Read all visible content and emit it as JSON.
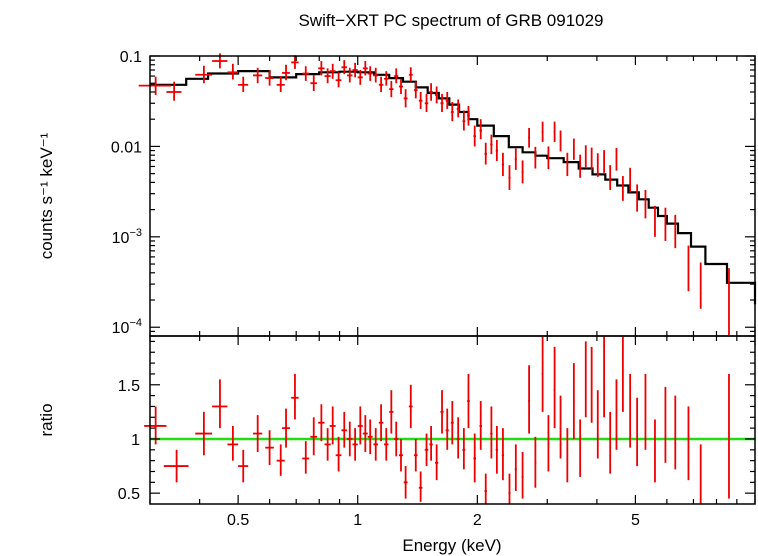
{
  "chart_data": [
    {
      "panel": "spectrum",
      "type": "scatter",
      "title": "Swift−XRT PC spectrum of GRB 091029",
      "xlabel": "Energy (keV)",
      "ylabel": "counts s⁻¹ keV⁻¹",
      "xscale": "log",
      "yscale": "log",
      "xlim": [
        0.3,
        10
      ],
      "ylim": [
        8e-05,
        0.1
      ],
      "x_ticks": [
        {
          "v": 0.5,
          "label": "0.5"
        },
        {
          "v": 1,
          "label": "1"
        },
        {
          "v": 2,
          "label": "2"
        },
        {
          "v": 5,
          "label": "5"
        }
      ],
      "y_ticks": [
        {
          "v": 0.1,
          "base": "0.1",
          "exp": ""
        },
        {
          "v": 0.01,
          "base": "0.01",
          "exp": ""
        },
        {
          "v": 0.001,
          "base": "10",
          "exp": "−3"
        },
        {
          "v": 0.0001,
          "base": "10",
          "exp": "−4"
        }
      ],
      "data_points": [
        [
          0.31,
          0.029,
          0.047,
          0.037,
          0.059
        ],
        [
          0.345,
          0.015,
          0.04,
          0.032,
          0.052
        ],
        [
          0.41,
          0.02,
          0.062,
          0.05,
          0.078
        ],
        [
          0.45,
          0.02,
          0.088,
          0.073,
          0.107
        ],
        [
          0.485,
          0.015,
          0.066,
          0.055,
          0.082
        ],
        [
          0.515,
          0.015,
          0.048,
          0.04,
          0.059
        ],
        [
          0.56,
          0.015,
          0.061,
          0.05,
          0.074
        ],
        [
          0.6,
          0.015,
          0.057,
          0.047,
          0.07
        ],
        [
          0.64,
          0.015,
          0.048,
          0.04,
          0.06
        ],
        [
          0.66,
          0.015,
          0.065,
          0.054,
          0.08
        ],
        [
          0.695,
          0.015,
          0.085,
          0.072,
          0.102
        ],
        [
          0.74,
          0.015,
          0.064,
          0.053,
          0.077
        ],
        [
          0.775,
          0.015,
          0.05,
          0.041,
          0.061
        ],
        [
          0.81,
          0.015,
          0.073,
          0.061,
          0.088
        ],
        [
          0.84,
          0.015,
          0.06,
          0.05,
          0.073
        ],
        [
          0.865,
          0.015,
          0.068,
          0.056,
          0.082
        ],
        [
          0.895,
          0.015,
          0.054,
          0.045,
          0.066
        ],
        [
          0.925,
          0.015,
          0.075,
          0.063,
          0.09
        ],
        [
          0.955,
          0.015,
          0.061,
          0.051,
          0.074
        ],
        [
          0.985,
          0.015,
          0.07,
          0.058,
          0.084
        ],
        [
          1.015,
          0.015,
          0.058,
          0.048,
          0.07
        ],
        [
          1.045,
          0.015,
          0.073,
          0.061,
          0.088
        ],
        [
          1.075,
          0.015,
          0.064,
          0.053,
          0.077
        ],
        [
          1.11,
          0.015,
          0.061,
          0.051,
          0.074
        ],
        [
          1.145,
          0.015,
          0.048,
          0.04,
          0.059
        ],
        [
          1.18,
          0.015,
          0.056,
          0.047,
          0.068
        ],
        [
          1.215,
          0.015,
          0.043,
          0.035,
          0.053
        ],
        [
          1.25,
          0.015,
          0.06,
          0.05,
          0.073
        ],
        [
          1.285,
          0.015,
          0.046,
          0.038,
          0.056
        ],
        [
          1.32,
          0.015,
          0.034,
          0.027,
          0.043
        ],
        [
          1.36,
          0.015,
          0.062,
          0.052,
          0.075
        ],
        [
          1.4,
          0.015,
          0.042,
          0.034,
          0.052
        ],
        [
          1.44,
          0.015,
          0.032,
          0.026,
          0.04
        ],
        [
          1.49,
          0.015,
          0.03,
          0.024,
          0.038
        ],
        [
          1.53,
          0.015,
          0.04,
          0.032,
          0.05
        ],
        [
          1.58,
          0.015,
          0.037,
          0.03,
          0.046
        ],
        [
          1.63,
          0.015,
          0.03,
          0.024,
          0.038
        ],
        [
          1.68,
          0.015,
          0.032,
          0.026,
          0.04
        ],
        [
          1.73,
          0.015,
          0.024,
          0.019,
          0.031
        ],
        [
          1.79,
          0.015,
          0.026,
          0.021,
          0.033
        ],
        [
          1.85,
          0.015,
          0.019,
          0.015,
          0.025
        ],
        [
          1.9,
          0.015,
          0.022,
          0.017,
          0.028
        ],
        [
          1.97,
          0.015,
          0.013,
          0.01,
          0.017
        ],
        [
          2.04,
          0.015,
          0.015,
          0.012,
          0.02
        ],
        [
          2.1,
          0.015,
          0.0083,
          0.0063,
          0.011
        ],
        [
          2.17,
          0.015,
          0.0105,
          0.0082,
          0.0135
        ],
        [
          2.24,
          0.015,
          0.009,
          0.0069,
          0.0118
        ],
        [
          2.32,
          0.015,
          0.0063,
          0.0047,
          0.0085
        ],
        [
          2.41,
          0.015,
          0.0045,
          0.0033,
          0.0062
        ],
        [
          2.5,
          0.015,
          0.0072,
          0.0055,
          0.0095
        ],
        [
          2.6,
          0.015,
          0.0052,
          0.0039,
          0.007
        ],
        [
          2.7,
          0.015,
          0.0125,
          0.0097,
          0.016
        ],
        [
          2.8,
          0.015,
          0.0075,
          0.0057,
          0.0099
        ],
        [
          2.92,
          0.015,
          0.0145,
          0.0112,
          0.0188
        ],
        [
          3.02,
          0.015,
          0.0075,
          0.0056,
          0.01
        ],
        [
          3.13,
          0.015,
          0.0145,
          0.0112,
          0.0188
        ],
        [
          3.24,
          0.015,
          0.0115,
          0.0088,
          0.015
        ],
        [
          3.37,
          0.015,
          0.0063,
          0.0047,
          0.0085
        ],
        [
          3.5,
          0.015,
          0.0093,
          0.0071,
          0.0122
        ],
        [
          3.63,
          0.015,
          0.006,
          0.0045,
          0.0081
        ],
        [
          3.75,
          0.015,
          0.0078,
          0.0059,
          0.0103
        ],
        [
          3.88,
          0.015,
          0.0073,
          0.0055,
          0.0097
        ],
        [
          4.02,
          0.015,
          0.0062,
          0.0046,
          0.0084
        ],
        [
          4.17,
          0.015,
          0.0068,
          0.0051,
          0.0091
        ],
        [
          4.32,
          0.015,
          0.0045,
          0.0033,
          0.0062
        ],
        [
          4.48,
          0.015,
          0.0072,
          0.0054,
          0.0096
        ],
        [
          4.65,
          0.015,
          0.0034,
          0.0025,
          0.0047
        ],
        [
          4.85,
          0.015,
          0.0042,
          0.0031,
          0.0058
        ],
        [
          5.05,
          0.015,
          0.0027,
          0.0019,
          0.0038
        ],
        [
          5.3,
          0.015,
          0.0023,
          0.0016,
          0.0033
        ],
        [
          5.6,
          0.015,
          0.0015,
          0.001,
          0.0022
        ],
        [
          5.95,
          0.015,
          0.0014,
          0.0009,
          0.0021
        ],
        [
          6.3,
          0.015,
          0.00115,
          0.00075,
          0.00175
        ],
        [
          6.8,
          0.015,
          0.00045,
          0.00025,
          0.0008
        ],
        [
          7.3,
          0.015,
          0.0003,
          0.00016,
          0.00052
        ],
        [
          8.6,
          0.015,
          0.0002,
          8e-05,
          0.00045
        ]
      ],
      "model_step_x": [
        0.3,
        0.37,
        0.42,
        0.5,
        0.6,
        0.7,
        0.8,
        0.9,
        1.0,
        1.1,
        1.2,
        1.3,
        1.4,
        1.5,
        1.6,
        1.7,
        1.8,
        1.9,
        2.0,
        2.2,
        2.4,
        2.6,
        2.8,
        3.0,
        3.3,
        3.6,
        3.9,
        4.2,
        4.5,
        4.8,
        5.1,
        5.4,
        5.7,
        6.0,
        6.4,
        6.9,
        7.5,
        8.5,
        10
      ],
      "model_step_y": [
        0.048,
        0.056,
        0.064,
        0.068,
        0.058,
        0.063,
        0.066,
        0.067,
        0.066,
        0.062,
        0.057,
        0.052,
        0.045,
        0.039,
        0.034,
        0.029,
        0.024,
        0.02,
        0.017,
        0.013,
        0.0098,
        0.0086,
        0.0079,
        0.0074,
        0.0067,
        0.0057,
        0.0049,
        0.0043,
        0.0037,
        0.0031,
        0.0026,
        0.0021,
        0.0017,
        0.0014,
        0.0011,
        0.00078,
        0.0005,
        0.00031,
        0.00018
      ]
    },
    {
      "panel": "ratio",
      "type": "scatter",
      "xlabel": "Energy (keV)",
      "ylabel": "ratio",
      "xscale": "log",
      "xlim": [
        0.3,
        10
      ],
      "ylim": [
        0.4,
        1.95
      ],
      "y_ticks": [
        {
          "v": 0.5,
          "label": "0.5"
        },
        {
          "v": 1,
          "label": "1"
        },
        {
          "v": 1.5,
          "label": "1.5"
        }
      ],
      "reference_line": 1,
      "data_points": [
        [
          0.31,
          0.02,
          1.12,
          0.95,
          1.3
        ],
        [
          0.35,
          0.025,
          0.75,
          0.6,
          0.9
        ],
        [
          0.41,
          0.02,
          1.05,
          0.85,
          1.25
        ],
        [
          0.45,
          0.02,
          1.3,
          1.1,
          1.55
        ],
        [
          0.485,
          0.015,
          0.95,
          0.8,
          1.12
        ],
        [
          0.515,
          0.015,
          0.75,
          0.6,
          0.9
        ],
        [
          0.56,
          0.015,
          1.05,
          0.88,
          1.22
        ],
        [
          0.6,
          0.015,
          0.92,
          0.76,
          1.08
        ],
        [
          0.64,
          0.015,
          0.8,
          0.66,
          0.95
        ],
        [
          0.66,
          0.015,
          1.1,
          0.92,
          1.28
        ],
        [
          0.695,
          0.015,
          1.38,
          1.18,
          1.6
        ],
        [
          0.74,
          0.015,
          0.82,
          0.68,
          0.98
        ],
        [
          0.775,
          0.015,
          1.02,
          0.85,
          1.2
        ],
        [
          0.81,
          0.015,
          1.15,
          0.98,
          1.32
        ],
        [
          0.84,
          0.015,
          0.95,
          0.8,
          1.1
        ],
        [
          0.865,
          0.015,
          1.12,
          0.95,
          1.3
        ],
        [
          0.895,
          0.015,
          0.85,
          0.7,
          1.02
        ],
        [
          0.925,
          0.015,
          1.08,
          0.92,
          1.25
        ],
        [
          0.955,
          0.015,
          1.0,
          0.84,
          1.16
        ],
        [
          0.985,
          0.015,
          0.95,
          0.8,
          1.1
        ],
        [
          1.015,
          0.015,
          1.12,
          0.95,
          1.3
        ],
        [
          1.045,
          0.015,
          1.05,
          0.88,
          1.22
        ],
        [
          1.075,
          0.015,
          1.02,
          0.86,
          1.18
        ],
        [
          1.11,
          0.015,
          0.95,
          0.8,
          1.1
        ],
        [
          1.145,
          0.015,
          1.15,
          0.98,
          1.32
        ],
        [
          1.18,
          0.015,
          0.95,
          0.8,
          1.1
        ],
        [
          1.215,
          0.015,
          1.25,
          1.05,
          1.45
        ],
        [
          1.25,
          0.015,
          1.0,
          0.84,
          1.16
        ],
        [
          1.285,
          0.015,
          0.85,
          0.7,
          1.0
        ],
        [
          1.32,
          0.015,
          0.6,
          0.45,
          0.75
        ],
        [
          1.36,
          0.015,
          1.3,
          1.1,
          1.5
        ],
        [
          1.4,
          0.015,
          0.85,
          0.7,
          1.0
        ],
        [
          1.44,
          0.015,
          0.55,
          0.42,
          0.7
        ],
        [
          1.49,
          0.015,
          0.9,
          0.75,
          1.05
        ],
        [
          1.53,
          0.015,
          0.95,
          0.8,
          1.12
        ],
        [
          1.58,
          0.015,
          0.78,
          0.62,
          0.95
        ],
        [
          1.63,
          0.015,
          1.25,
          1.05,
          1.45
        ],
        [
          1.68,
          0.015,
          1.08,
          0.9,
          1.28
        ],
        [
          1.73,
          0.015,
          1.15,
          0.95,
          1.35
        ],
        [
          1.79,
          0.015,
          1.0,
          0.82,
          1.2
        ],
        [
          1.85,
          0.015,
          0.9,
          0.72,
          1.1
        ],
        [
          1.9,
          0.015,
          1.35,
          1.1,
          1.6
        ],
        [
          1.97,
          0.015,
          0.82,
          0.6,
          1.05
        ],
        [
          2.04,
          0.015,
          1.12,
          0.9,
          1.35
        ],
        [
          2.1,
          0.015,
          0.52,
          0.38,
          0.68
        ],
        [
          2.17,
          0.015,
          1.05,
          0.82,
          1.3
        ],
        [
          2.24,
          0.015,
          0.9,
          0.68,
          1.12
        ],
        [
          2.32,
          0.015,
          0.85,
          0.62,
          1.1
        ],
        [
          2.41,
          0.015,
          0.5,
          0.35,
          0.68
        ],
        [
          2.5,
          0.015,
          0.72,
          0.52,
          0.95
        ],
        [
          2.6,
          0.015,
          0.65,
          0.45,
          0.88
        ],
        [
          2.7,
          0.015,
          1.35,
          1.05,
          1.68
        ],
        [
          2.8,
          0.015,
          0.78,
          0.55,
          1.02
        ],
        [
          2.92,
          0.015,
          1.6,
          1.25,
          1.95
        ],
        [
          3.02,
          0.015,
          0.95,
          0.7,
          1.22
        ],
        [
          3.13,
          0.015,
          1.45,
          1.1,
          1.85
        ],
        [
          3.24,
          0.015,
          1.1,
          0.82,
          1.4
        ],
        [
          3.37,
          0.015,
          0.85,
          0.6,
          1.1
        ],
        [
          3.5,
          0.015,
          1.35,
          1.0,
          1.7
        ],
        [
          3.63,
          0.015,
          0.9,
          0.65,
          1.18
        ],
        [
          3.75,
          0.015,
          1.55,
          1.2,
          1.9
        ],
        [
          3.88,
          0.015,
          1.5,
          1.15,
          1.85
        ],
        [
          4.02,
          0.015,
          1.12,
          0.82,
          1.45
        ],
        [
          4.17,
          0.015,
          1.55,
          1.2,
          1.95
        ],
        [
          4.32,
          0.015,
          0.95,
          0.68,
          1.25
        ],
        [
          4.48,
          0.015,
          1.2,
          0.9,
          1.55
        ],
        [
          4.65,
          0.015,
          1.65,
          1.25,
          1.95
        ],
        [
          4.85,
          0.015,
          1.25,
          0.92,
          1.6
        ],
        [
          5.05,
          0.015,
          1.05,
          0.75,
          1.38
        ],
        [
          5.3,
          0.015,
          1.25,
          0.9,
          1.6
        ],
        [
          5.6,
          0.015,
          0.88,
          0.6,
          1.18
        ],
        [
          5.95,
          0.015,
          1.12,
          0.78,
          1.48
        ],
        [
          6.3,
          0.015,
          1.05,
          0.72,
          1.4
        ],
        [
          6.8,
          0.015,
          0.95,
          0.62,
          1.3
        ],
        [
          7.3,
          0.025,
          0.55,
          0.3,
          0.95
        ],
        [
          8.6,
          0.02,
          1.0,
          0.45,
          1.6
        ]
      ]
    }
  ]
}
